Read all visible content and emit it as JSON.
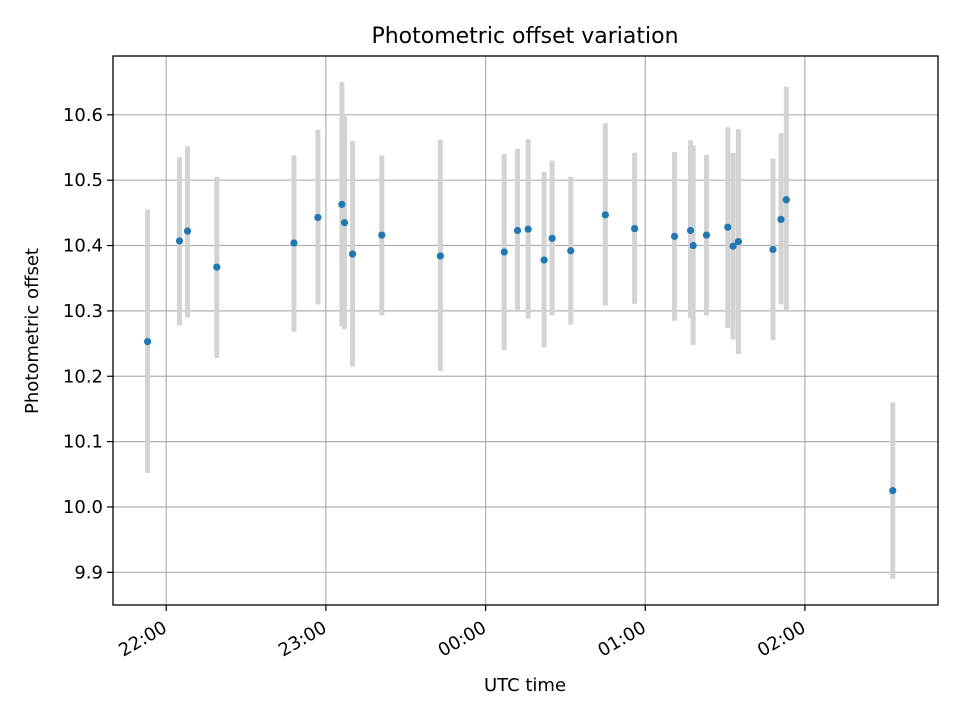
{
  "chart_data": {
    "type": "scatter",
    "title": "Photometric offset variation",
    "xlabel": "UTC time",
    "ylabel": "Photometric offset",
    "grid": true,
    "xlim": [
      "21:40",
      "02:50"
    ],
    "ylim": [
      9.85,
      10.69
    ],
    "x_ticks": [
      "22:00",
      "23:00",
      "00:00",
      "01:00",
      "02:00"
    ],
    "y_ticks": [
      9.9,
      10.0,
      10.1,
      10.2,
      10.3,
      10.4,
      10.5,
      10.6
    ],
    "marker_color": "#1f77b4",
    "errorbar_color": "#d3d3d3",
    "points": [
      {
        "time": "21:53",
        "value": 10.253,
        "low": 10.052,
        "high": 10.455
      },
      {
        "time": "22:05",
        "value": 10.407,
        "low": 10.278,
        "high": 10.535
      },
      {
        "time": "22:08",
        "value": 10.422,
        "low": 10.29,
        "high": 10.552
      },
      {
        "time": "22:19",
        "value": 10.367,
        "low": 10.228,
        "high": 10.505
      },
      {
        "time": "22:48",
        "value": 10.404,
        "low": 10.268,
        "high": 10.538
      },
      {
        "time": "22:57",
        "value": 10.443,
        "low": 10.31,
        "high": 10.577
      },
      {
        "time": "23:06",
        "value": 10.463,
        "low": 10.276,
        "high": 10.65
      },
      {
        "time": "23:07",
        "value": 10.435,
        "low": 10.272,
        "high": 10.598
      },
      {
        "time": "23:10",
        "value": 10.387,
        "low": 10.215,
        "high": 10.56
      },
      {
        "time": "23:21",
        "value": 10.416,
        "low": 10.293,
        "high": 10.538
      },
      {
        "time": "23:43",
        "value": 10.384,
        "low": 10.208,
        "high": 10.562
      },
      {
        "time": "00:07",
        "value": 10.39,
        "low": 10.24,
        "high": 10.54
      },
      {
        "time": "00:12",
        "value": 10.423,
        "low": 10.3,
        "high": 10.548
      },
      {
        "time": "00:16",
        "value": 10.425,
        "low": 10.288,
        "high": 10.563
      },
      {
        "time": "00:22",
        "value": 10.378,
        "low": 10.244,
        "high": 10.513
      },
      {
        "time": "00:25",
        "value": 10.411,
        "low": 10.293,
        "high": 10.53
      },
      {
        "time": "00:32",
        "value": 10.392,
        "low": 10.279,
        "high": 10.505
      },
      {
        "time": "00:45",
        "value": 10.447,
        "low": 10.308,
        "high": 10.587
      },
      {
        "time": "00:56",
        "value": 10.426,
        "low": 10.311,
        "high": 10.542
      },
      {
        "time": "01:11",
        "value": 10.414,
        "low": 10.285,
        "high": 10.543
      },
      {
        "time": "01:17",
        "value": 10.423,
        "low": 10.289,
        "high": 10.561
      },
      {
        "time": "01:18",
        "value": 10.4,
        "low": 10.248,
        "high": 10.553
      },
      {
        "time": "01:23",
        "value": 10.416,
        "low": 10.293,
        "high": 10.539
      },
      {
        "time": "01:31",
        "value": 10.428,
        "low": 10.274,
        "high": 10.581
      },
      {
        "time": "01:33",
        "value": 10.399,
        "low": 10.256,
        "high": 10.542
      },
      {
        "time": "01:35",
        "value": 10.406,
        "low": 10.234,
        "high": 10.578
      },
      {
        "time": "01:48",
        "value": 10.394,
        "low": 10.255,
        "high": 10.533
      },
      {
        "time": "01:51",
        "value": 10.44,
        "low": 10.31,
        "high": 10.572
      },
      {
        "time": "01:53",
        "value": 10.47,
        "low": 10.3,
        "high": 10.643
      },
      {
        "time": "02:33",
        "value": 10.025,
        "low": 9.89,
        "high": 10.16
      }
    ]
  }
}
